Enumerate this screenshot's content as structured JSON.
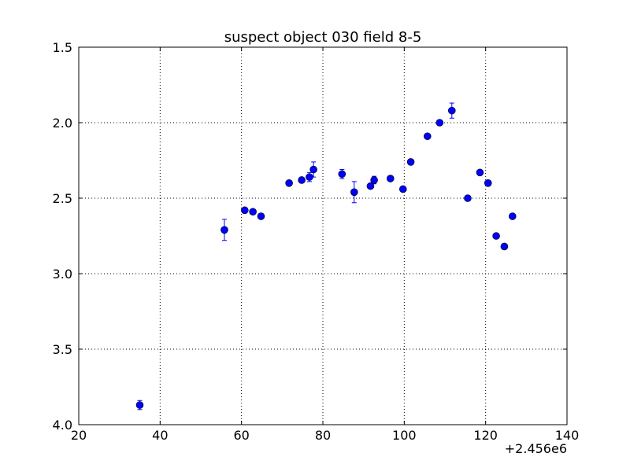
{
  "chart_data": {
    "type": "scatter",
    "title": "suspect object 030 field 8-5",
    "xlabel": "",
    "ylabel": "",
    "x_offset_label": "+2.456e6",
    "xlim": [
      20,
      140
    ],
    "ylim": [
      1.5,
      4.0
    ],
    "y_inverted": true,
    "x_ticks": [
      20,
      40,
      60,
      80,
      100,
      120,
      140
    ],
    "y_ticks": [
      1.5,
      2.0,
      2.5,
      3.0,
      3.5,
      4.0
    ],
    "x_tick_labels": [
      "20",
      "40",
      "60",
      "80",
      "100",
      "120",
      "140"
    ],
    "y_tick_labels": [
      "1.5",
      "2.0",
      "2.5",
      "3.0",
      "3.5",
      "4.0"
    ],
    "grid": true,
    "marker_color": "#0000ff",
    "errorbar_color": "#0000ff",
    "series": [
      {
        "points": [
          {
            "x": 35.0,
            "y": 3.87,
            "err": 0.03
          },
          {
            "x": 55.8,
            "y": 2.71,
            "err": 0.07
          },
          {
            "x": 60.8,
            "y": 2.58,
            "err": 0.015
          },
          {
            "x": 62.8,
            "y": 2.59,
            "err": 0.015
          },
          {
            "x": 64.8,
            "y": 2.62,
            "err": 0.01
          },
          {
            "x": 71.7,
            "y": 2.4,
            "err": 0.01
          },
          {
            "x": 74.8,
            "y": 2.38,
            "err": 0.015
          },
          {
            "x": 76.7,
            "y": 2.36,
            "err": 0.03
          },
          {
            "x": 77.7,
            "y": 2.31,
            "err": 0.05
          },
          {
            "x": 84.7,
            "y": 2.34,
            "err": 0.03
          },
          {
            "x": 87.7,
            "y": 2.46,
            "err": 0.07
          },
          {
            "x": 91.7,
            "y": 2.42,
            "err": 0.015
          },
          {
            "x": 92.6,
            "y": 2.38,
            "err": 0.025
          },
          {
            "x": 96.6,
            "y": 2.37,
            "err": 0.01
          },
          {
            "x": 99.7,
            "y": 2.44,
            "err": 0.015
          },
          {
            "x": 101.6,
            "y": 2.26,
            "err": 0.01
          },
          {
            "x": 105.7,
            "y": 2.09,
            "err": 0.01
          },
          {
            "x": 108.7,
            "y": 2.0,
            "err": 0.015
          },
          {
            "x": 111.7,
            "y": 1.92,
            "err": 0.05
          },
          {
            "x": 115.6,
            "y": 2.5,
            "err": 0.015
          },
          {
            "x": 118.6,
            "y": 2.33,
            "err": 0.01
          },
          {
            "x": 120.6,
            "y": 2.4,
            "err": 0.01
          },
          {
            "x": 122.6,
            "y": 2.75,
            "err": 0.015
          },
          {
            "x": 124.6,
            "y": 2.82,
            "err": 0.01
          },
          {
            "x": 126.6,
            "y": 2.62,
            "err": 0.01
          }
        ]
      }
    ]
  }
}
